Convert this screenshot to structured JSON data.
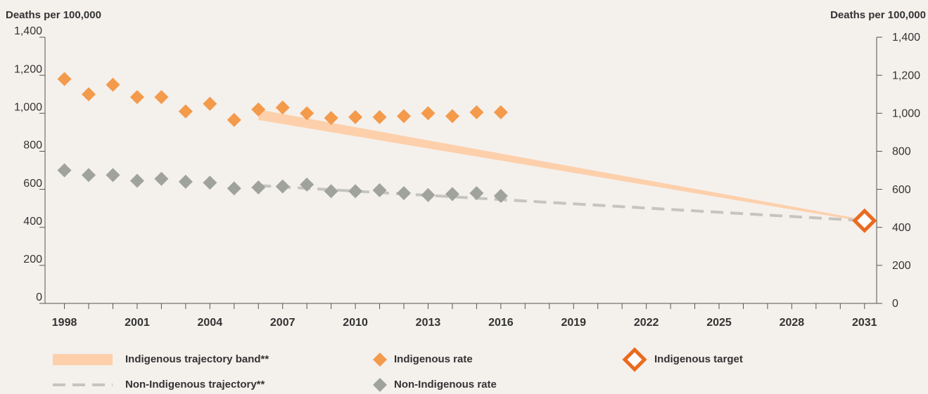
{
  "chart_data": {
    "type": "scatter",
    "y_label": "Deaths per 100,000",
    "y2_label": "Deaths per 100,000",
    "xlim": [
      1997.2,
      2031.5
    ],
    "ylim": [
      0,
      1400
    ],
    "xticks": [
      1998,
      2001,
      2004,
      2007,
      2010,
      2013,
      2016,
      2019,
      2022,
      2025,
      2028,
      2031
    ],
    "xminorticks": [
      1998,
      1999,
      2000,
      2001,
      2002,
      2003,
      2004,
      2005,
      2006,
      2007,
      2008,
      2009,
      2010,
      2011,
      2012,
      2013,
      2014,
      2015,
      2016,
      2017,
      2018,
      2019,
      2020,
      2021,
      2022,
      2023,
      2024,
      2025,
      2026,
      2027,
      2028,
      2029,
      2030,
      2031
    ],
    "yticks": [
      0,
      200,
      400,
      600,
      800,
      {
        "value": 1000,
        "label": "1,000"
      },
      {
        "value": 1200,
        "label": "1,200"
      },
      {
        "value": 1400,
        "label": "1,400"
      }
    ],
    "series": [
      {
        "name": "Indigenous trajectory band**",
        "style": "band",
        "color": "#fdd0ab",
        "x": [
          2006,
          2031
        ],
        "lower": [
          965,
          430
        ],
        "upper": [
          1020,
          440
        ]
      },
      {
        "name": "Non-Indigenous trajectory**",
        "style": "dashed",
        "color": "#c6c4bf",
        "x": [
          2006,
          2031
        ],
        "values": [
          620,
          435
        ]
      },
      {
        "name": "Indigenous rate",
        "style": "diamond",
        "color": "#f39a4b",
        "x": [
          1998,
          1999,
          2000,
          2001,
          2002,
          2003,
          2004,
          2005,
          2006,
          2007,
          2008,
          2009,
          2010,
          2011,
          2012,
          2013,
          2014,
          2015,
          2016
        ],
        "values": [
          1180,
          1100,
          1150,
          1085,
          1085,
          1010,
          1050,
          965,
          1020,
          1030,
          1000,
          975,
          980,
          980,
          985,
          1000,
          985,
          1005,
          1005
        ]
      },
      {
        "name": "Non-Indigenous rate",
        "style": "diamond",
        "color": "#9fa39c",
        "x": [
          1998,
          1999,
          2000,
          2001,
          2002,
          2003,
          2004,
          2005,
          2006,
          2007,
          2008,
          2009,
          2010,
          2011,
          2012,
          2013,
          2014,
          2015,
          2016
        ],
        "values": [
          700,
          675,
          675,
          645,
          655,
          640,
          635,
          605,
          610,
          615,
          625,
          590,
          590,
          595,
          580,
          570,
          575,
          580,
          565
        ]
      },
      {
        "name": "Indigenous target",
        "style": "hollow",
        "color": "#ea6a1f",
        "x": [
          2031
        ],
        "values": [
          435
        ]
      }
    ]
  }
}
